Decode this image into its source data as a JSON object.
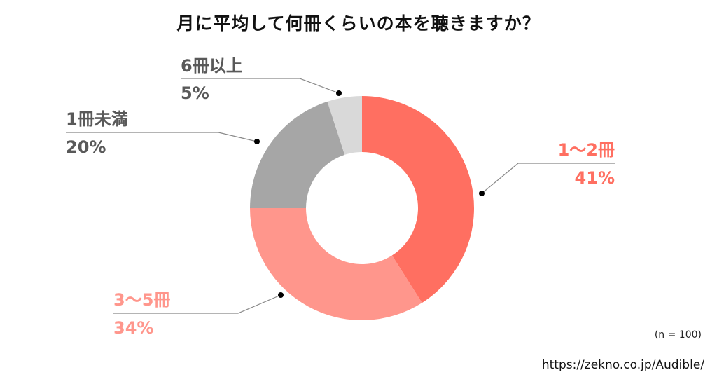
{
  "chart_data": {
    "type": "pie",
    "variant": "donut",
    "title": "月に平均して何冊くらいの本を聴きますか？",
    "categories": [
      "1〜2冊",
      "3〜5冊",
      "1冊未満",
      "6冊以上"
    ],
    "values": [
      41,
      34,
      20,
      5
    ],
    "value_labels": [
      "41%",
      "34%",
      "20%",
      "5%"
    ],
    "colors": [
      "#FF6F61",
      "#FF968C",
      "#A6A6A6",
      "#D9D9D9"
    ],
    "start_angle": "12 o'clock, clockwise",
    "note": "(n = 100)",
    "source": "https://zekno.co.jp/Audible/"
  },
  "labels": {
    "s1": {
      "name": "1〜2冊",
      "pct": "41%"
    },
    "s2": {
      "name": "3〜5冊",
      "pct": "34%"
    },
    "s3": {
      "name": "1冊未満",
      "pct": "20%"
    },
    "s4": {
      "name": "6冊以上",
      "pct": "5%"
    }
  }
}
